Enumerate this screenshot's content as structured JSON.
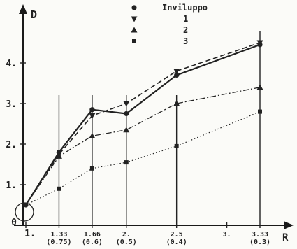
{
  "chart_data": {
    "type": "line",
    "xlabel": "R",
    "ylabel": "D",
    "xlim": [
      0.8,
      3.9
    ],
    "ylim": [
      0,
      4.9
    ],
    "x_ticks": [
      {
        "x": 1,
        "label": "1.",
        "sub": ""
      },
      {
        "x": 1.33,
        "label": "1.33",
        "sub": "(0.75)"
      },
      {
        "x": 1.66,
        "label": "1.66",
        "sub": "(0.6)"
      },
      {
        "x": 2,
        "label": "2.",
        "sub": "(0.5)"
      },
      {
        "x": 2.5,
        "label": "2.5",
        "sub": "(0.4)"
      },
      {
        "x": 3,
        "label": "3.",
        "sub": ""
      },
      {
        "x": 3.33,
        "label": "3.33",
        "sub": "(0.3)"
      }
    ],
    "y_ticks": [
      {
        "y": 0,
        "label": "0"
      },
      {
        "y": 1,
        "label": "1."
      },
      {
        "y": 2,
        "label": "2."
      },
      {
        "y": 3,
        "label": "3."
      },
      {
        "y": 4,
        "label": "4."
      }
    ],
    "vertical_lines_x": [
      1.33,
      1.66,
      2,
      2.5,
      3.33
    ],
    "series": [
      {
        "name": "Inviluppo",
        "marker": "dot",
        "line": "solid",
        "x": [
          1,
          1.33,
          1.66,
          2,
          2.5,
          3.33
        ],
        "y": [
          0.5,
          1.8,
          2.85,
          2.75,
          3.7,
          4.45
        ]
      },
      {
        "name": "1",
        "marker": "triangle-down",
        "line": "dashed",
        "x": [
          1,
          1.33,
          1.66,
          2,
          2.5,
          3.33
        ],
        "y": [
          0.5,
          1.75,
          2.7,
          3.0,
          3.8,
          4.5
        ]
      },
      {
        "name": "2",
        "marker": "triangle-up",
        "line": "dashdot",
        "x": [
          1,
          1.33,
          1.66,
          2,
          2.5,
          3.33
        ],
        "y": [
          0.5,
          1.7,
          2.2,
          2.35,
          3.0,
          3.4
        ]
      },
      {
        "name": "3",
        "marker": "square",
        "line": "dotted",
        "x": [
          1,
          1.33,
          1.66,
          2,
          2.5,
          3.33
        ],
        "y": [
          0.5,
          0.9,
          1.4,
          1.55,
          1.95,
          2.8
        ]
      }
    ],
    "legend_position": "top-center",
    "grid": false
  }
}
